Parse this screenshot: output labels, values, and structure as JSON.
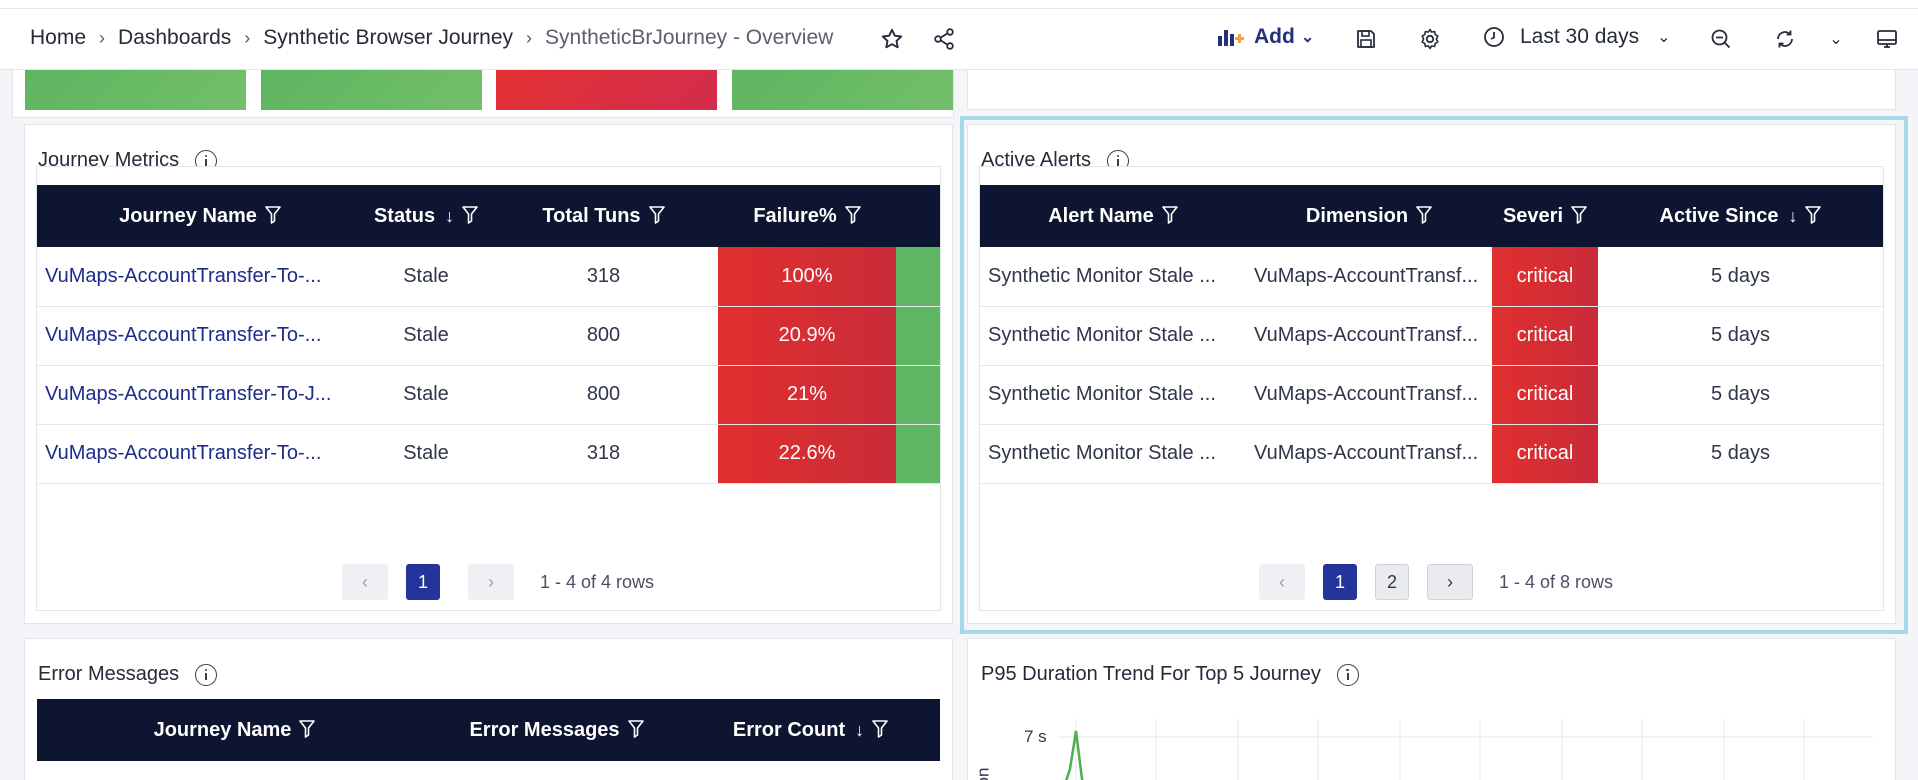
{
  "breadcrumb": {
    "items": [
      "Home",
      "Dashboards",
      "Synthetic Browser Journey"
    ],
    "current": "SyntheticBrJourney - Overview"
  },
  "toolbar": {
    "add_label": "Add",
    "time_range": "Last 30 days"
  },
  "colors": {
    "header_bg": "#0e1530",
    "critical": "#d9302f",
    "ok": "#5fb663",
    "link": "#1d2c8a",
    "accent": "#24349a"
  },
  "journey_metrics": {
    "title": "Journey Metrics",
    "columns": [
      "Journey Name",
      "Status",
      "Total Tuns",
      "Failure%"
    ],
    "rows": [
      {
        "name": "VuMaps-AccountTransfer-To-...",
        "status": "Stale",
        "total": "318",
        "failure": "100%"
      },
      {
        "name": "VuMaps-AccountTransfer-To-...",
        "status": "Stale",
        "total": "800",
        "failure": "20.9%"
      },
      {
        "name": "VuMaps-AccountTransfer-To-J...",
        "status": "Stale",
        "total": "800",
        "failure": "21%"
      },
      {
        "name": "VuMaps-AccountTransfer-To-...",
        "status": "Stale",
        "total": "318",
        "failure": "22.6%"
      }
    ],
    "pager": {
      "page": "1",
      "rows_label": "1 - 4 of 4 rows"
    }
  },
  "active_alerts": {
    "title": "Active Alerts",
    "columns": [
      "Alert Name",
      "Dimension",
      "Severi",
      "Active Since"
    ],
    "rows": [
      {
        "alert": "Synthetic Monitor Stale ...",
        "dimension": "VuMaps-AccountTransf...",
        "severity": "critical",
        "since": "5 days"
      },
      {
        "alert": "Synthetic Monitor Stale ...",
        "dimension": "VuMaps-AccountTransf...",
        "severity": "critical",
        "since": "5 days"
      },
      {
        "alert": "Synthetic Monitor Stale ...",
        "dimension": "VuMaps-AccountTransf...",
        "severity": "critical",
        "since": "5 days"
      },
      {
        "alert": "Synthetic Monitor Stale ...",
        "dimension": "VuMaps-AccountTransf...",
        "severity": "critical",
        "since": "5 days"
      }
    ],
    "pager": {
      "page1": "1",
      "page2": "2",
      "rows_label": "1 - 4 of 8 rows"
    }
  },
  "error_messages": {
    "title": "Error Messages",
    "columns": [
      "Journey Name",
      "Error Messages",
      "Error Count"
    ]
  },
  "p95_trend": {
    "title": "P95 Duration Trend For Top 5 Journey",
    "y_tick": "7 s",
    "y_label": "on"
  }
}
